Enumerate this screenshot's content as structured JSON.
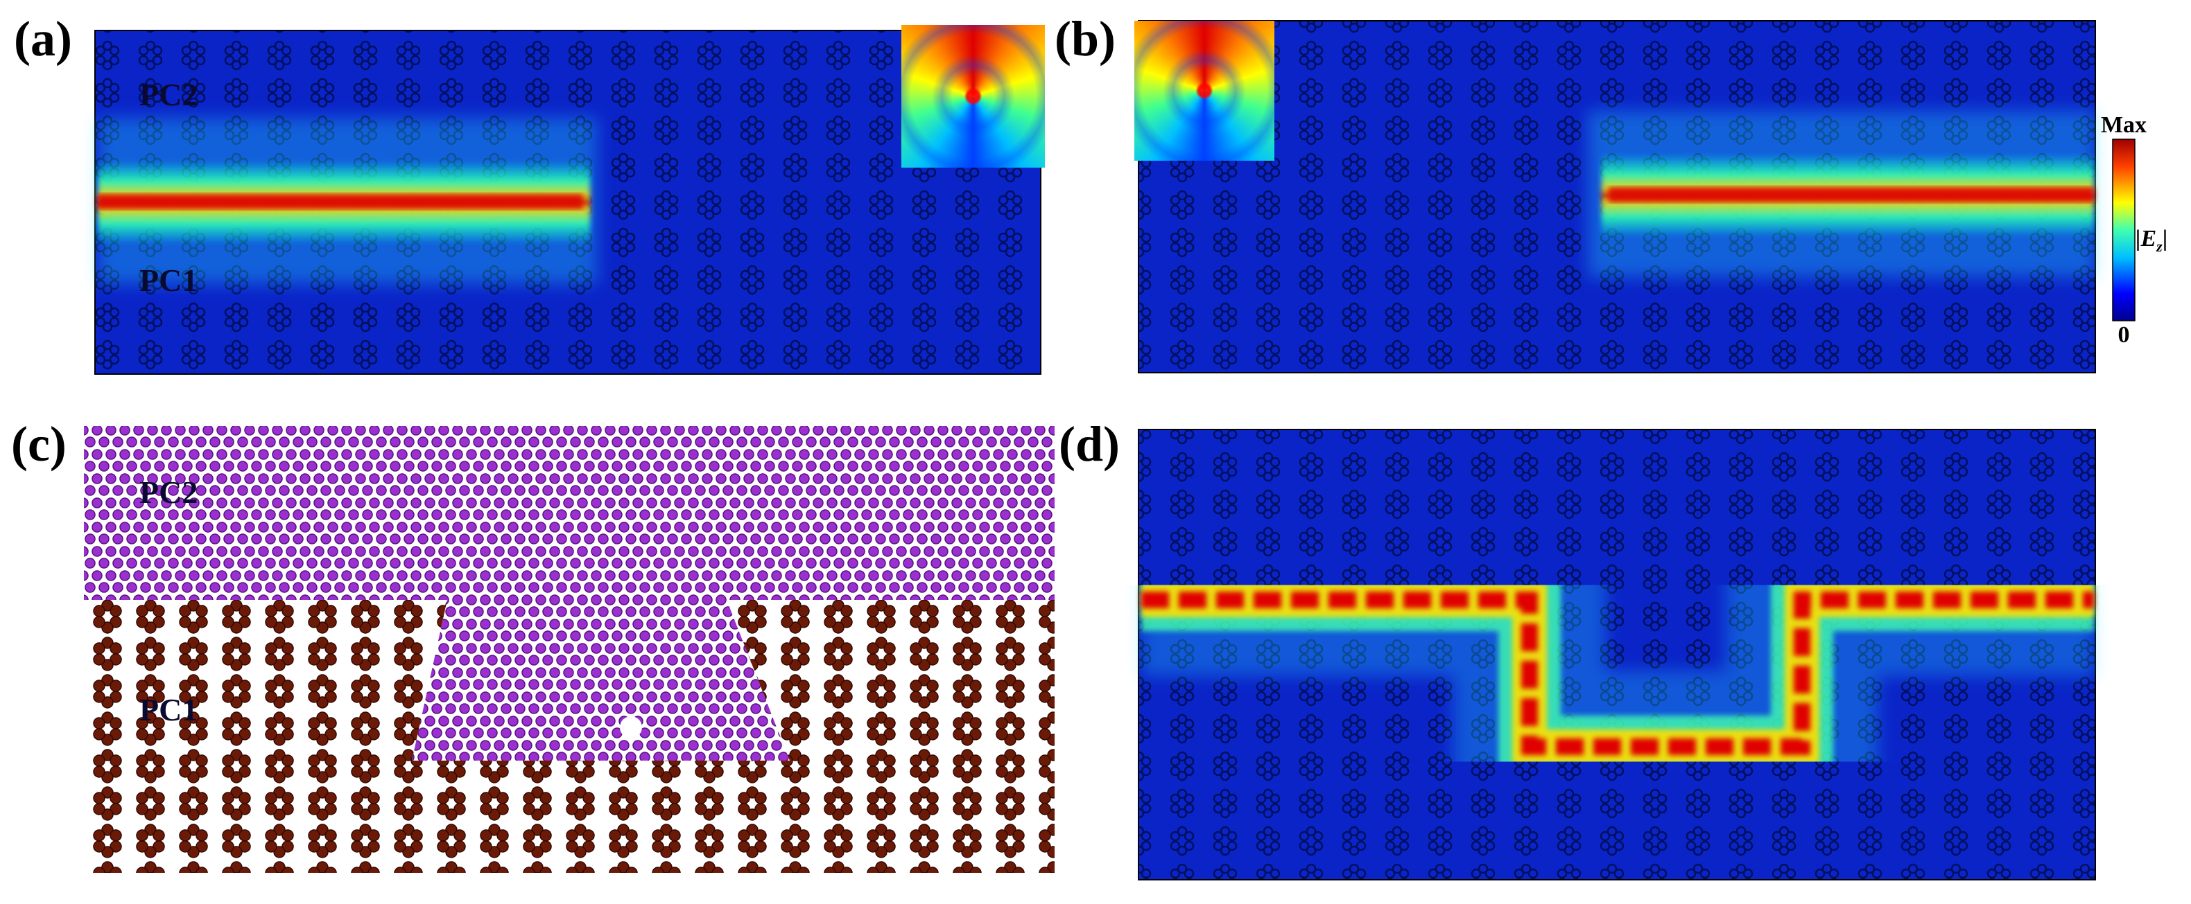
{
  "panels": [
    {
      "label": "(a)",
      "texts": [
        "PC2",
        "PC1"
      ]
    },
    {
      "label": "(b)"
    },
    {
      "label": "(c)",
      "texts": [
        "PC2",
        "PC1"
      ]
    },
    {
      "label": "(d)"
    }
  ],
  "colorbar": {
    "max": "Max",
    "min": "0",
    "quantity": "|E",
    "subscript": "z",
    "quantity_end": "|"
  }
}
